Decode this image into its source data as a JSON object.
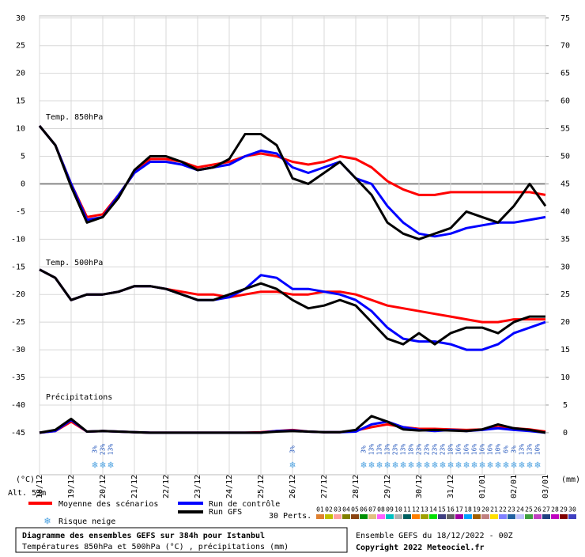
{
  "chart_data": {
    "type": "line",
    "title": "Diagramme des ensembles GEFS sur 384h pour Istanbul",
    "subtitle": "Températures 850hPa et 500hPa (°C) , précipitations (mm)",
    "y_label": "(°C)",
    "y2_label": "(mm)",
    "altitude": "Alt. 53m",
    "panel_labels": [
      "Temp. 850hPa",
      "Temp. 500hPa",
      "Précipitations"
    ],
    "categories": [
      "18/12",
      null,
      "19/12",
      null,
      "20/12",
      null,
      "21/12",
      null,
      "22/12",
      null,
      "23/12",
      null,
      "24/12",
      null,
      "25/12",
      null,
      "26/12",
      null,
      "27/12",
      null,
      "28/12",
      null,
      "29/12",
      null,
      "30/12",
      null,
      "31/12",
      null,
      "01/01",
      null,
      "02/01",
      null,
      "03/01"
    ],
    "ylim": [
      -52.6,
      30.4
    ],
    "yticks": [
      30,
      25,
      20,
      15,
      10,
      5,
      0,
      -5,
      -10,
      -15,
      -20,
      -25,
      -30,
      -35,
      -40,
      -45
    ],
    "y2lim": [
      -7.6,
      75.4
    ],
    "y2ticks": [
      75,
      70,
      65,
      60,
      55,
      50,
      45,
      40,
      35,
      30,
      25,
      20,
      15,
      10,
      5,
      0
    ],
    "grid": true,
    "series": [
      {
        "name": "Moyenne des scénarios",
        "color": "#ff0000",
        "values": [
          10.5,
          7,
          0,
          -6,
          -5.5,
          -2,
          2,
          4.5,
          4.5,
          4,
          3,
          3.5,
          4,
          5,
          5.5,
          5,
          4,
          3.5,
          4,
          5,
          4.5,
          3,
          0.5,
          -1,
          -2,
          -2,
          -1.5,
          -1.5,
          -1.5,
          -1.5,
          -1.5,
          -1.5,
          -2
        ]
      },
      {
        "name": "Run de contrôle",
        "color": "#0000ff",
        "values": [
          10.5,
          7,
          0,
          -6.5,
          -6,
          -2,
          2,
          4,
          4,
          3.5,
          2.5,
          3,
          3.5,
          5,
          6,
          5.5,
          3,
          2,
          3,
          4,
          1,
          0,
          -4,
          -7,
          -9,
          -9.5,
          -9,
          -8,
          -7.5,
          -7,
          -7,
          -6.5,
          -6
        ]
      },
      {
        "name": "Run GFS",
        "color": "#000000",
        "values": [
          10.5,
          7,
          -0.5,
          -7,
          -6,
          -2.5,
          2.5,
          5,
          5,
          4,
          2.5,
          3,
          4.5,
          9,
          9,
          7,
          1,
          0,
          2,
          4,
          1,
          -2,
          -7,
          -9,
          -10,
          -9,
          -8,
          -5,
          -6,
          -7,
          -4,
          0,
          -4
        ]
      },
      {
        "color": "#ff0000",
        "values": [
          -15.5,
          -17,
          -21,
          -20,
          -20,
          -19.5,
          -18.5,
          -18.5,
          -19,
          -19.5,
          -20,
          -20,
          -20.5,
          -20,
          -19.5,
          -19.5,
          -20,
          -20,
          -19.5,
          -19.5,
          -20,
          -21,
          -22,
          -22.5,
          -23,
          -23.5,
          -24,
          -24.5,
          -25,
          -25,
          -24.5,
          -24.5,
          -24.5
        ]
      },
      {
        "color": "#0000ff",
        "values": [
          -15.5,
          -17,
          -21,
          -20,
          -20,
          -19.5,
          -18.5,
          -18.5,
          -19,
          -20,
          -21,
          -21,
          -20.5,
          -19,
          -16.5,
          -17,
          -19,
          -19,
          -19.5,
          -20,
          -21,
          -23,
          -26,
          -28,
          -28.5,
          -28.5,
          -29,
          -30,
          -30,
          -29,
          -27,
          -26,
          -25
        ]
      },
      {
        "color": "#000000",
        "values": [
          -15.5,
          -17,
          -21,
          -20,
          -20,
          -19.5,
          -18.5,
          -18.5,
          -19,
          -20,
          -21,
          -21,
          -20,
          -19,
          -18,
          -19,
          -21,
          -22.5,
          -22,
          -21,
          -22,
          -25,
          -28,
          -29,
          -27,
          -29,
          -27,
          -26,
          -26,
          -27,
          -25,
          -24,
          -24
        ]
      },
      {
        "color": "#ff0000",
        "axis": "y2",
        "values": [
          0,
          0.3,
          2,
          0.2,
          0.3,
          0.2,
          0.1,
          0,
          0,
          0,
          0,
          0,
          0,
          0,
          0.1,
          0.3,
          0.5,
          0.2,
          0.1,
          0.1,
          0.4,
          1,
          1.5,
          1,
          0.7,
          0.7,
          0.6,
          0.5,
          0.6,
          1,
          0.8,
          0.6,
          0.2
        ]
      },
      {
        "color": "#0000ff",
        "axis": "y2",
        "values": [
          0,
          0.3,
          2.3,
          0.2,
          0.3,
          0.2,
          0.1,
          0,
          0,
          0,
          0,
          0,
          0,
          0,
          0,
          0.3,
          0.4,
          0.2,
          0.1,
          0.1,
          0.2,
          1.5,
          2,
          1,
          0.5,
          0.3,
          0.5,
          0.3,
          0.5,
          0.8,
          0.5,
          0.3,
          0
        ]
      },
      {
        "color": "#000000",
        "axis": "y2",
        "values": [
          0,
          0.5,
          2.5,
          0.2,
          0.3,
          0.2,
          0.1,
          0,
          0,
          0,
          0,
          0,
          0,
          0,
          0,
          0.2,
          0.3,
          0.2,
          0.1,
          0.1,
          0.5,
          3,
          2,
          0.6,
          0.4,
          0.5,
          0.4,
          0.3,
          0.6,
          1.5,
          0.8,
          0.5,
          0
        ]
      }
    ],
    "snow_risk": {
      "name": "Risque neige",
      "values": [
        null,
        null,
        null,
        null,
        null,
        null,
        null,
        3,
        23,
        13,
        null,
        null,
        null,
        null,
        null,
        null,
        null,
        null,
        null,
        null,
        null,
        null,
        null,
        null,
        null,
        null,
        null,
        null,
        null,
        null,
        null,
        null,
        3,
        null,
        null,
        null,
        null,
        null,
        null,
        null,
        null,
        3,
        13,
        13,
        13,
        23,
        13,
        18,
        23,
        23,
        23,
        23,
        18,
        16,
        16,
        16,
        16,
        16,
        10,
        6,
        3,
        13,
        13,
        10,
        null
      ],
      "value_labels": [
        null,
        null,
        null,
        null,
        null,
        null,
        null,
        "3%",
        "23%",
        "13%",
        null,
        null,
        null,
        null,
        null,
        null,
        null,
        null,
        null,
        null,
        null,
        null,
        null,
        null,
        null,
        null,
        null,
        null,
        null,
        null,
        null,
        null,
        "3%",
        null,
        null,
        null,
        null,
        null,
        null,
        null,
        null,
        "3%",
        "13%",
        "13%",
        "13%",
        "23%",
        "13%",
        "18%",
        "23%",
        "23%",
        "23%",
        "23%",
        "18%",
        "16%",
        "16%",
        "16%",
        "16%",
        "16%",
        "10%",
        "6%",
        "3%",
        "13%",
        "13%",
        "10%",
        null
      ]
    },
    "members_label": "30 Perts.",
    "members": [
      {
        "name": "01",
        "color": "#e08030"
      },
      {
        "name": "02",
        "color": "#c0c000"
      },
      {
        "name": "03",
        "color": "#ffa0a0"
      },
      {
        "name": "04",
        "color": "#808000"
      },
      {
        "name": "05",
        "color": "#8b4513"
      },
      {
        "name": "06",
        "color": "#009000"
      },
      {
        "name": "07",
        "color": "#e0c080"
      },
      {
        "name": "08",
        "color": "#ff60ff"
      },
      {
        "name": "09",
        "color": "#00c0c0"
      },
      {
        "name": "10",
        "color": "#b0b0b0"
      },
      {
        "name": "11",
        "color": "#006060"
      },
      {
        "name": "12",
        "color": "#ff8000"
      },
      {
        "name": "13",
        "color": "#a0a000"
      },
      {
        "name": "14",
        "color": "#00e000"
      },
      {
        "name": "15",
        "color": "#404080"
      },
      {
        "name": "16",
        "color": "#606060"
      },
      {
        "name": "17",
        "color": "#a000a0"
      },
      {
        "name": "18",
        "color": "#00a0ff"
      },
      {
        "name": "19",
        "color": "#a06000"
      },
      {
        "name": "20",
        "color": "#c08080"
      },
      {
        "name": "21",
        "color": "#ffe000"
      },
      {
        "name": "22",
        "color": "#8080ff"
      },
      {
        "name": "23",
        "color": "#2060a0"
      },
      {
        "name": "24",
        "color": "#c0c0ff"
      },
      {
        "name": "25",
        "color": "#40a040"
      },
      {
        "name": "26",
        "color": "#c040c0"
      },
      {
        "name": "27",
        "color": "#204080"
      },
      {
        "name": "28",
        "color": "#c000c0"
      },
      {
        "name": "29",
        "color": "#800000"
      },
      {
        "name": "30",
        "color": "#4040c0"
      }
    ],
    "run_info": "Ensemble GEFS du 18/12/2022 - 00Z",
    "copyright": "Copyright 2022 Meteociel.fr"
  }
}
